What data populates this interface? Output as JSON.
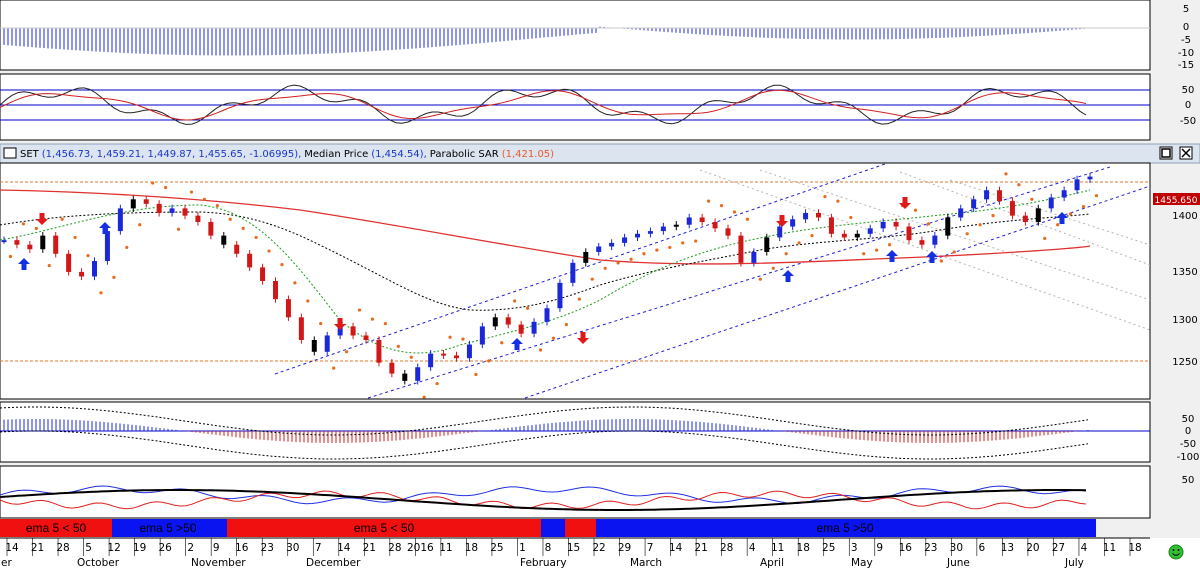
{
  "main_panel": {
    "title_symbol": "SET",
    "title_values": "(1,456.73, 1,459.21, 1,449.87, 1,455.65, -1.06995),",
    "median_label": "Median Price",
    "median_value": "(1,454.54),",
    "sar_label": "Parabolic SAR",
    "sar_value": "(1,421.05)",
    "last_price_tag": "1455.650",
    "y_ticks": [
      "1400",
      "1350",
      "1300",
      "1250"
    ]
  },
  "macd_panel": {
    "y_ticks": [
      "5",
      "0",
      "-5",
      "-10",
      "-15"
    ]
  },
  "stoch_panel": {
    "y_ticks": [
      "50",
      "0",
      "-50"
    ]
  },
  "osc_panel": {
    "y_ticks": [
      "50",
      "0",
      "-50",
      "-100"
    ]
  },
  "rsi_panel": {
    "y_ticks": [
      "50"
    ]
  },
  "signal_band": {
    "labels": [
      "ema 5 < 50",
      "ema 5 >50",
      "ema 5 < 50",
      "ema 5 >50"
    ],
    "colors": {
      "bull": "#0a14f0",
      "bear": "#f01010"
    }
  },
  "date_axis": {
    "days": [
      "14",
      "21",
      "28",
      "5",
      "12",
      "19",
      "26",
      "2",
      "9",
      "16",
      "23",
      "30",
      "7",
      "14",
      "21",
      "28",
      "2016",
      "11",
      "18",
      "25",
      "1",
      "8",
      "15",
      "22",
      "29",
      "7",
      "14",
      "21",
      "28",
      "4",
      "11",
      "18",
      "25",
      "3",
      "9",
      "16",
      "23",
      "30",
      "6",
      "13",
      "20",
      "27",
      "4",
      "11",
      "18"
    ],
    "months": [
      "October",
      "November",
      "December",
      "February",
      "March",
      "April",
      "May",
      "June",
      "July"
    ],
    "left_clip": "er"
  },
  "chart_data": {
    "type": "line",
    "title": "SET (1,456.73, 1,459.21, 1,449.87, 1,455.65, -1.06995), Median Price (1,454.54), Parabolic SAR (1,421.05)",
    "ylim": [
      1210,
      1470
    ],
    "series": [
      {
        "name": "SET",
        "values": [
          1385,
          1380,
          1375,
          1390,
          1370,
          1350,
          1345,
          1362,
          1395,
          1420,
          1430,
          1425,
          1415,
          1420,
          1412,
          1405,
          1390,
          1380,
          1370,
          1355,
          1340,
          1320,
          1300,
          1275,
          1262,
          1280,
          1290,
          1280,
          1275,
          1250,
          1238,
          1230,
          1245,
          1260,
          1258,
          1255,
          1270,
          1290,
          1300,
          1292,
          1282,
          1295,
          1310,
          1338,
          1360,
          1372,
          1378,
          1382,
          1388,
          1392,
          1395,
          1400,
          1402,
          1410,
          1405,
          1398,
          1390,
          1360,
          1372,
          1388,
          1400,
          1408,
          1415,
          1410,
          1392,
          1388,
          1392,
          1398,
          1405,
          1400,
          1385,
          1380,
          1390,
          1410,
          1420,
          1430,
          1440,
          1428,
          1412,
          1405,
          1420,
          1432,
          1440,
          1452,
          1455
        ]
      }
    ]
  }
}
